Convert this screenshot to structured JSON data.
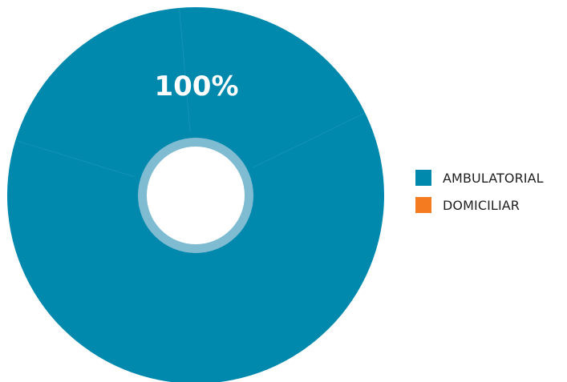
{
  "chart_data": {
    "type": "pie",
    "categories": [
      "AMBULATORIAL",
      "DOMICILIAR"
    ],
    "values": [
      100,
      0
    ],
    "data_labels": [
      "100%"
    ],
    "colors": [
      "#0088ad",
      "#f47b20"
    ],
    "legend": {
      "position": "right",
      "entries": [
        {
          "label": "AMBULATORIAL",
          "color": "#0088ad"
        },
        {
          "label": "DOMICILIAR",
          "color": "#f47b20"
        }
      ]
    },
    "title": ""
  }
}
